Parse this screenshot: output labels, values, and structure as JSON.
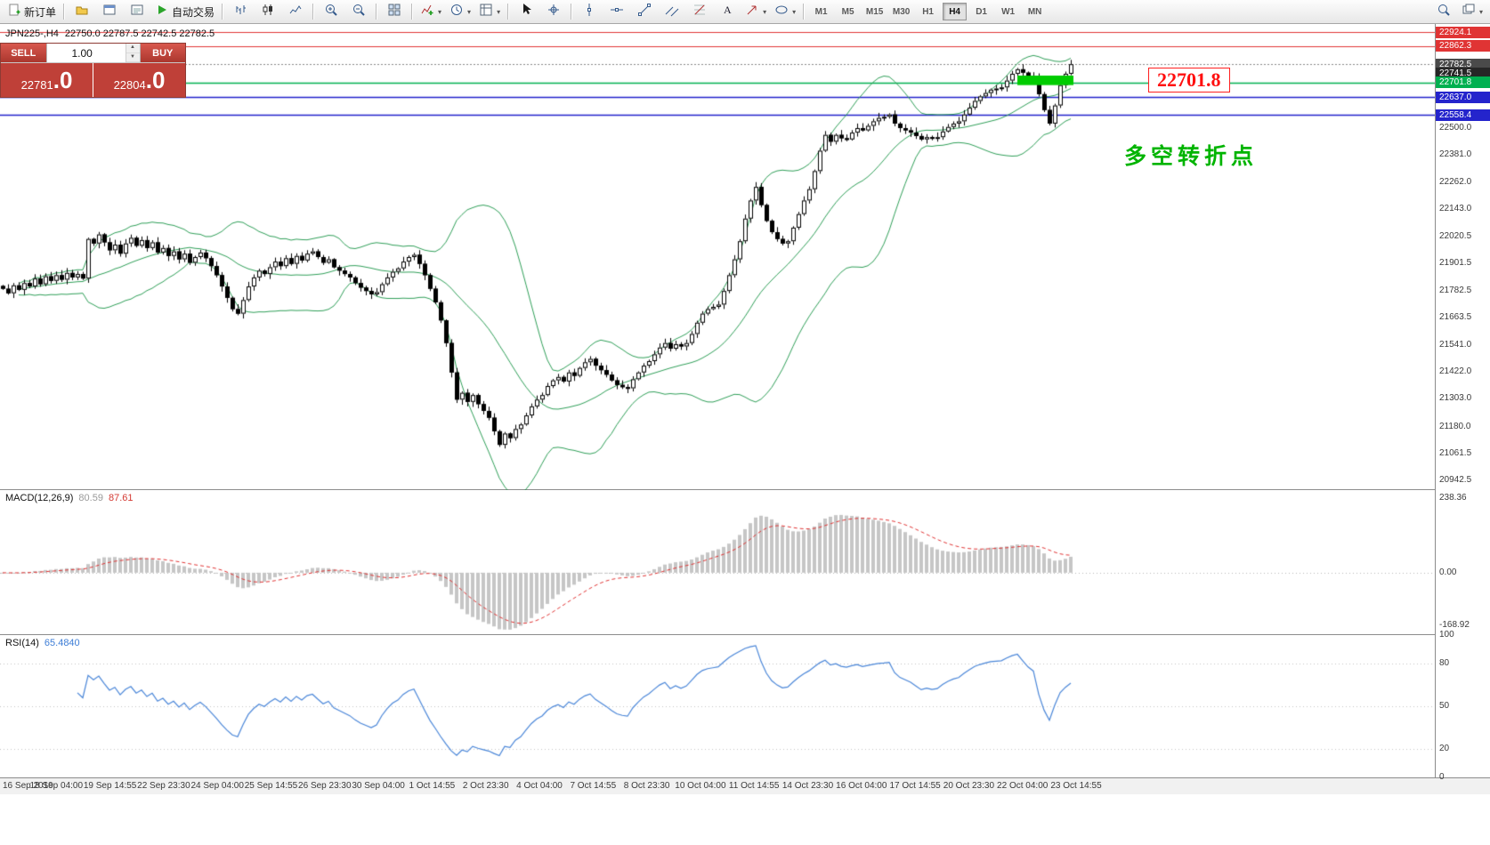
{
  "toolbar": {
    "items": [
      {
        "icon": "new-order",
        "label": "新订单"
      },
      {
        "sep": true
      },
      {
        "icon": "profiles"
      },
      {
        "icon": "market-watch"
      },
      {
        "icon": "data-window"
      },
      {
        "icon": "autotrading",
        "label": "自动交易"
      },
      {
        "sep": true
      },
      {
        "icon": "bar-chart"
      },
      {
        "icon": "candlestick-chart"
      },
      {
        "icon": "line-chart"
      },
      {
        "sep": true
      },
      {
        "icon": "zoom-in"
      },
      {
        "icon": "zoom-out"
      },
      {
        "sep": true
      },
      {
        "icon": "tile-windows"
      },
      {
        "sep": true
      },
      {
        "icon": "indicators",
        "caret": true
      },
      {
        "icon": "periods",
        "caret": true
      },
      {
        "icon": "templates",
        "caret": true
      },
      {
        "sep": true
      },
      {
        "icon": "cursor"
      },
      {
        "icon": "crosshair"
      },
      {
        "sep": true
      },
      {
        "icon": "vertical-line"
      },
      {
        "icon": "horizontal-line"
      },
      {
        "icon": "trendline"
      },
      {
        "icon": "equidistant-channel"
      },
      {
        "icon": "fibonacci"
      },
      {
        "icon": "text"
      },
      {
        "icon": "arrows",
        "caret": true
      },
      {
        "icon": "shapes",
        "caret": true
      },
      {
        "sep": true
      }
    ],
    "timeframes": [
      "M1",
      "M5",
      "M15",
      "M30",
      "H1",
      "H4",
      "D1",
      "W1",
      "MN"
    ],
    "active_timeframe": "H4",
    "right_items": [
      {
        "icon": "search"
      },
      {
        "icon": "new-window",
        "caret": true
      }
    ]
  },
  "trade_panel": {
    "sell_label": "SELL",
    "buy_label": "BUY",
    "volume": "1.00",
    "sell_price_main": "22781",
    "sell_price_frac": ".0",
    "buy_price_main": "22804",
    "buy_price_frac": ".0"
  },
  "chart_header": {
    "symbol_period": "JPN225-,H4",
    "ohlc": "22750.0 22787.5 22742.5 22782.5"
  },
  "annotations": {
    "price_label": "22701.8",
    "note_text": "多空转折点"
  },
  "chart_data": {
    "type": "candlestick",
    "symbol": "JPN225-",
    "timeframe": "H4",
    "price_range": {
      "max": 22960,
      "min": 20900
    },
    "closes": [
      21790,
      21770,
      21805,
      21785,
      21815,
      21800,
      21835,
      21810,
      21845,
      21825,
      21850,
      21830,
      21860,
      21840,
      21855,
      21835,
      22010,
      21990,
      22030,
      21995,
      21960,
      21985,
      21945,
      21990,
      22015,
      21980,
      22005,
      21970,
      21995,
      21950,
      21970,
      21935,
      21955,
      21920,
      21945,
      21905,
      21930,
      21950,
      21925,
      21890,
      21850,
      21800,
      21750,
      21700,
      21680,
      21740,
      21800,
      21840,
      21870,
      21855,
      21885,
      21910,
      21890,
      21925,
      21900,
      21935,
      21915,
      21945,
      21955,
      21930,
      21905,
      21920,
      21885,
      21870,
      21855,
      21840,
      21815,
      21795,
      21780,
      21765,
      21775,
      21810,
      21840,
      21865,
      21880,
      21910,
      21930,
      21940,
      21900,
      21850,
      21790,
      21730,
      21650,
      21550,
      21420,
      21300,
      21330,
      21290,
      21320,
      21280,
      21250,
      21220,
      21160,
      21100,
      21150,
      21130,
      21170,
      21190,
      21230,
      21270,
      21300,
      21320,
      21360,
      21385,
      21400,
      21380,
      21420,
      21405,
      21440,
      21465,
      21480,
      21450,
      21430,
      21410,
      21385,
      21365,
      21355,
      21350,
      21390,
      21420,
      21450,
      21470,
      21500,
      21530,
      21550,
      21525,
      21545,
      21535,
      21550,
      21590,
      21640,
      21680,
      21700,
      21710,
      21720,
      21780,
      21850,
      21920,
      22000,
      22100,
      22180,
      22240,
      22160,
      22090,
      22040,
      22010,
      21990,
      22000,
      22060,
      22120,
      22180,
      22230,
      22310,
      22400,
      22470,
      22440,
      22470,
      22455,
      22450,
      22480,
      22500,
      22490,
      22510,
      22530,
      22545,
      22550,
      22560,
      22520,
      22500,
      22490,
      22480,
      22465,
      22450,
      22460,
      22455,
      22460,
      22485,
      22505,
      22520,
      22530,
      22560,
      22590,
      22620,
      22640,
      22655,
      22670,
      22675,
      22680,
      22710,
      22740,
      22760,
      22745,
      22730,
      22720,
      22650,
      22580,
      22520,
      22600,
      22690,
      22740,
      22782.5
    ],
    "y_ticks": [
      22500.0,
      22381.0,
      22262.0,
      22143.0,
      22020.5,
      21901.5,
      21782.5,
      21663.5,
      21541.0,
      21422.0,
      21303.0,
      21180.0,
      21061.5,
      20942.5
    ],
    "levels": [
      {
        "price": 22924.1,
        "color": "#e03434",
        "line": "solid",
        "tag_bg": "#e03434"
      },
      {
        "price": 22862.3,
        "color": "#e03434",
        "line": "solid",
        "tag_bg": "#e03434"
      },
      {
        "price": 22782.5,
        "color": "#888888",
        "line": "dotted",
        "tag_bg": "#4a4a4a"
      },
      {
        "price": 22741.5,
        "color": "#333333",
        "line": "none",
        "tag_bg": "#262626"
      },
      {
        "price": 22701.8,
        "color": "#00b050",
        "line": "solid",
        "tag_bg": "#00b050"
      },
      {
        "price": 22637.0,
        "color": "#2020cc",
        "line": "solid",
        "tag_bg": "#2424cc"
      },
      {
        "price": 22558.4,
        "color": "#2020cc",
        "line": "solid",
        "tag_bg": "#2424cc"
      }
    ],
    "highlight_zone": {
      "from_index": 190.5,
      "to_index": 201,
      "price_top": 22732,
      "price_bottom": 22690,
      "color": "#00cc00"
    },
    "bollinger": {
      "period": 20,
      "deviation": 2,
      "color": "#2e9e57"
    },
    "macd": {
      "label": "MACD(12,26,9)",
      "value_main": "80.59",
      "value_signal": "87.61",
      "fast": 12,
      "slow": 26,
      "signal": 9,
      "ticks": [
        238.36,
        0,
        -168.92
      ],
      "range": {
        "max": 265,
        "min": -200
      },
      "hist_color": "#c6c6c6",
      "signal_color": "#e03434"
    },
    "rsi": {
      "label": "RSI(14)",
      "value": "65.4840",
      "period": 14,
      "ticks": [
        100,
        80,
        50,
        20,
        0
      ],
      "levels": [
        80,
        50,
        20
      ],
      "line_color": "#4a86d8"
    },
    "x_labels": [
      "16 Sep 2019",
      "18 Sep 04:00",
      "19 Sep 14:55",
      "22 Sep 23:30",
      "24 Sep 04:00",
      "25 Sep 14:55",
      "26 Sep 23:30",
      "30 Sep 04:00",
      "1 Oct 14:55",
      "2 Oct 23:30",
      "4 Oct 04:00",
      "7 Oct 14:55",
      "8 Oct 23:30",
      "10 Oct 04:00",
      "11 Oct 14:55",
      "14 Oct 23:30",
      "16 Oct 04:00",
      "17 Oct 14:55",
      "20 Oct 23:30",
      "22 Oct 04:00",
      "23 Oct 14:55"
    ]
  }
}
